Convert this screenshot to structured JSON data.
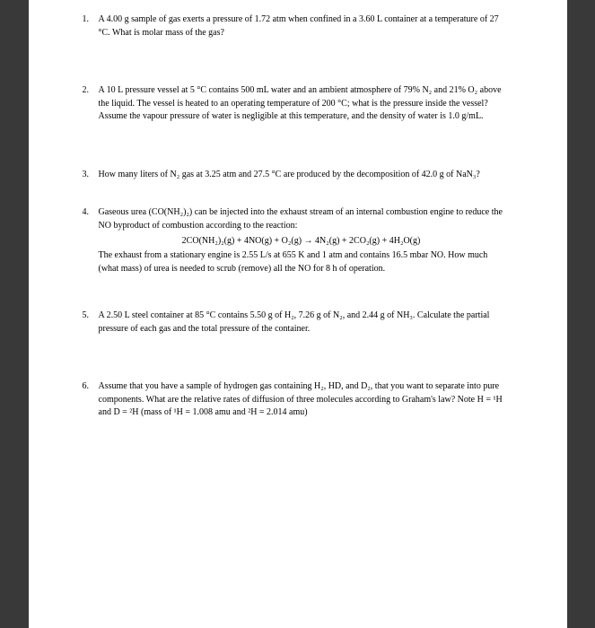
{
  "background_color": "#393939",
  "page_color": "#ffffff",
  "text_color": "#000000",
  "font_family": "Georgia, Times New Roman, serif",
  "font_size": 10,
  "problems": {
    "p1": {
      "number": "1.",
      "text": "A 4.00 g sample of gas exerts a pressure of 1.72 atm when confined in a 3.60 L container at a temperature of 27 °C.  What is molar mass of the gas?"
    },
    "p2": {
      "number": "2.",
      "text": "A 10 L pressure vessel at 5 °C contains 500 mL water and an ambient atmosphere of 79% N₂ and 21% O₂ above the liquid.  The vessel is heated to an operating temperature of 200 °C; what is the pressure inside the vessel?  Assume the vapour pressure of water is negligible at this temperature, and the density of water is 1.0 g/mL."
    },
    "p3": {
      "number": "3.",
      "text": "How many liters of N₂ gas at 3.25 atm and 27.5 °C are produced by the decomposition of 42.0 g of NaN₃?"
    },
    "p4": {
      "number": "4.",
      "text": "Gaseous urea (CO(NH₂)₂) can be injected into the exhaust stream of an internal combustion engine to reduce the NO byproduct of combustion according to the reaction:",
      "equation": "2CO(NH₂)₂(g) + 4NO(g) + O₂(g) → 4N₂(g) + 2CO₂(g) + 4H₂O(g)",
      "continuation": "The exhaust from a stationary engine is 2.55 L/s at 655 K and 1 atm and contains 16.5 mbar NO. How much (what mass) of urea is needed to scrub (remove) all the NO for 8 h of operation."
    },
    "p5": {
      "number": "5.",
      "text": "A 2.50 L steel container at 85 °C contains 5.50 g of H₂, 7.26 g of N₂, and 2.44 g of NH₃. Calculate the partial pressure of each gas and the total pressure of the container."
    },
    "p6": {
      "number": "6.",
      "text": "Assume that you have a sample of hydrogen gas containing H₂, HD, and D₂, that you want to separate into pure components.  What are the relative rates of diffusion of three molecules according to Graham's law?  Note H = ¹H  and D = ²H (mass of ¹H  = 1.008 amu and ²H  = 2.014 amu)"
    }
  }
}
